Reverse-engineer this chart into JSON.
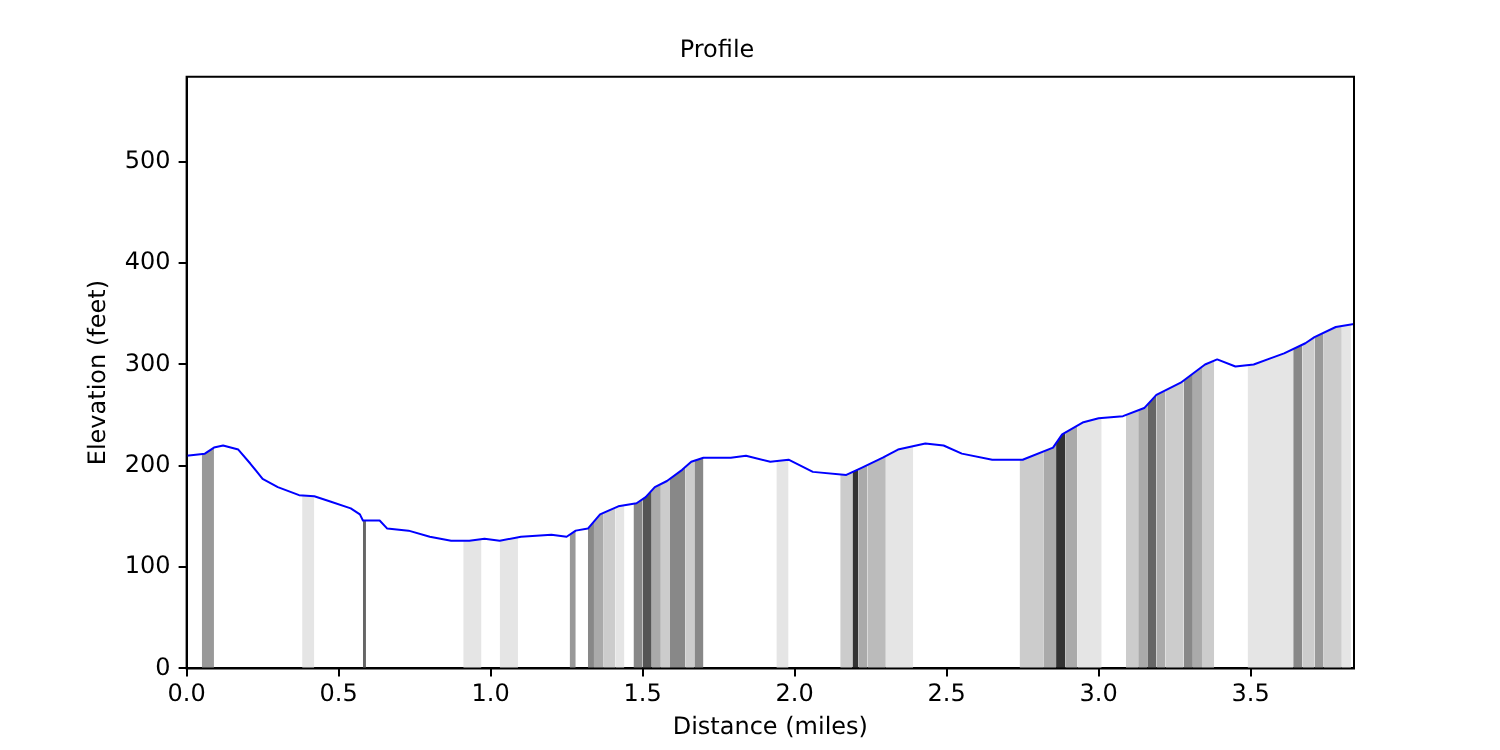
{
  "chart_data": {
    "type": "line",
    "title": "Profile",
    "xlabel": "Distance (miles)",
    "ylabel": "Elevation (feet)",
    "xlim": [
      0,
      3.84
    ],
    "ylim": [
      0,
      584
    ],
    "xticks": [
      {
        "value": 0,
        "label": "0.0"
      },
      {
        "value": 0.5,
        "label": "0.5"
      },
      {
        "value": 1,
        "label": "1.0"
      },
      {
        "value": 1.5,
        "label": "1.5"
      },
      {
        "value": 2,
        "label": "2.0"
      },
      {
        "value": 2.5,
        "label": "2.5"
      },
      {
        "value": 3,
        "label": "3.0"
      },
      {
        "value": 3.5,
        "label": "3.5"
      }
    ],
    "yticks": [
      0,
      100,
      200,
      300,
      400,
      500
    ],
    "grid": false,
    "legend": false,
    "marker": "none",
    "line_style": "solid",
    "series": [
      {
        "color": "#0000ff",
        "x": [
          0,
          0.06,
          0.09,
          0.12,
          0.17,
          0.21,
          0.25,
          0.3,
          0.37,
          0.42,
          0.47,
          0.54,
          0.57,
          0.58,
          0.635,
          0.66,
          0.73,
          0.8,
          0.87,
          0.93,
          0.98,
          1.03,
          1.1,
          1.2,
          1.25,
          1.28,
          1.32,
          1.36,
          1.42,
          1.48,
          1.51,
          1.54,
          1.58,
          1.63,
          1.66,
          1.7,
          1.79,
          1.84,
          1.92,
          1.98,
          2.06,
          2.17,
          2.22,
          2.29,
          2.34,
          2.43,
          2.49,
          2.55,
          2.65,
          2.75,
          2.85,
          2.88,
          2.95,
          3.0,
          3.08,
          3.15,
          3.19,
          3.27,
          3.35,
          3.39,
          3.45,
          3.51,
          3.61,
          3.68,
          3.71,
          3.78,
          3.84
        ],
        "values": [
          210,
          212,
          218,
          220,
          216,
          202,
          187,
          179,
          171,
          170,
          165,
          158,
          152,
          146,
          146,
          138,
          136,
          130,
          126,
          126,
          128,
          126,
          130,
          132,
          130,
          136,
          138,
          152,
          160,
          163,
          169,
          179,
          185,
          196,
          204,
          208,
          208,
          210,
          204,
          206,
          194,
          191,
          198,
          208,
          216,
          222,
          220,
          212,
          206,
          206,
          218,
          231,
          243,
          247,
          249,
          257,
          270,
          282,
          300,
          305,
          298,
          300,
          311,
          321,
          327,
          337,
          340
        ]
      },
      {
        "type": "area",
        "color": "#999999",
        "x": [
          0.05,
          0.06,
          0.09
        ],
        "values": [
          212,
          212,
          218
        ]
      },
      {
        "type": "area",
        "color": "#e5e5e5",
        "x": [
          0.38,
          0.42
        ],
        "values": [
          171,
          170
        ]
      },
      {
        "type": "area",
        "color": "#666666",
        "x": [
          0.58,
          0.59
        ],
        "values": [
          146,
          146
        ]
      },
      {
        "type": "area",
        "color": "#e5e5e5",
        "x": [
          0.91,
          0.93,
          0.97
        ],
        "values": [
          126,
          126,
          128
        ]
      },
      {
        "type": "area",
        "color": "#e5e5e5",
        "x": [
          1.03,
          1.09
        ],
        "values": [
          126,
          129
        ]
      },
      {
        "type": "area",
        "color": "#999999",
        "x": [
          1.26,
          1.28
        ],
        "values": [
          132,
          136
        ]
      },
      {
        "type": "area",
        "color": "#888888",
        "x": [
          1.32,
          1.34
        ],
        "values": [
          138,
          145
        ]
      },
      {
        "type": "area",
        "color": "#aaaaaa",
        "x": [
          1.34,
          1.36,
          1.37
        ],
        "values": [
          145,
          152,
          153
        ]
      },
      {
        "type": "area",
        "color": "#cccccc",
        "x": [
          1.37,
          1.41
        ],
        "values": [
          153,
          159
        ]
      },
      {
        "type": "area",
        "color": "#e5e5e5",
        "x": [
          1.41,
          1.42,
          1.44
        ],
        "values": [
          159,
          160,
          161
        ]
      },
      {
        "type": "area",
        "color": "#888888",
        "x": [
          1.47,
          1.48,
          1.5
        ],
        "values": [
          162,
          163,
          167
        ]
      },
      {
        "type": "area",
        "color": "#555555",
        "x": [
          1.5,
          1.51,
          1.53
        ],
        "values": [
          167,
          169,
          176
        ]
      },
      {
        "type": "area",
        "color": "#aaaaaa",
        "x": [
          1.53,
          1.54,
          1.56
        ],
        "values": [
          176,
          179,
          182
        ]
      },
      {
        "type": "area",
        "color": "#cccccc",
        "x": [
          1.56,
          1.58,
          1.59
        ],
        "values": [
          182,
          185,
          187
        ]
      },
      {
        "type": "area",
        "color": "#888888",
        "x": [
          1.59,
          1.63,
          1.64
        ],
        "values": [
          187,
          196,
          199
        ]
      },
      {
        "type": "area",
        "color": "#cccccc",
        "x": [
          1.64,
          1.66,
          1.67
        ],
        "values": [
          199,
          204,
          205
        ]
      },
      {
        "type": "area",
        "color": "#888888",
        "x": [
          1.67,
          1.7
        ],
        "values": [
          205,
          208
        ]
      },
      {
        "type": "area",
        "color": "#e5e5e5",
        "x": [
          1.94,
          1.98
        ],
        "values": [
          205,
          206
        ]
      },
      {
        "type": "area",
        "color": "#cccccc",
        "x": [
          2.15,
          2.17,
          2.19
        ],
        "values": [
          192,
          191,
          194
        ]
      },
      {
        "type": "area",
        "color": "#333333",
        "x": [
          2.19,
          2.21
        ],
        "values": [
          194,
          197
        ]
      },
      {
        "type": "area",
        "color": "#aaaaaa",
        "x": [
          2.21,
          2.22,
          2.24
        ],
        "values": [
          197,
          198,
          201
        ]
      },
      {
        "type": "area",
        "color": "#bbbbbb",
        "x": [
          2.24,
          2.29,
          2.3
        ],
        "values": [
          201,
          208,
          210
        ]
      },
      {
        "type": "area",
        "color": "#e5e5e5",
        "x": [
          2.3,
          2.34,
          2.39
        ],
        "values": [
          210,
          216,
          219
        ]
      },
      {
        "type": "area",
        "color": "#cccccc",
        "x": [
          2.74,
          2.75,
          2.82
        ],
        "values": [
          206,
          206,
          214
        ]
      },
      {
        "type": "area",
        "color": "#aaaaaa",
        "x": [
          2.82,
          2.85,
          2.86
        ],
        "values": [
          214,
          218,
          222
        ]
      },
      {
        "type": "area",
        "color": "#333333",
        "x": [
          2.86,
          2.88,
          2.89
        ],
        "values": [
          222,
          231,
          233
        ]
      },
      {
        "type": "area",
        "color": "#aaaaaa",
        "x": [
          2.89,
          2.93
        ],
        "values": [
          233,
          240
        ]
      },
      {
        "type": "area",
        "color": "#e5e5e5",
        "x": [
          2.93,
          2.95,
          3.0,
          3.01
        ],
        "values": [
          240,
          243,
          247,
          247
        ]
      },
      {
        "type": "area",
        "color": "#cccccc",
        "x": [
          3.09,
          3.13
        ],
        "values": [
          250,
          255
        ]
      },
      {
        "type": "area",
        "color": "#aaaaaa",
        "x": [
          3.13,
          3.15,
          3.16
        ],
        "values": [
          255,
          257,
          260
        ]
      },
      {
        "type": "area",
        "color": "#666666",
        "x": [
          3.16,
          3.19
        ],
        "values": [
          260,
          270
        ]
      },
      {
        "type": "area",
        "color": "#aaaaaa",
        "x": [
          3.19,
          3.22
        ],
        "values": [
          270,
          274
        ]
      },
      {
        "type": "area",
        "color": "#cccccc",
        "x": [
          3.22,
          3.27,
          3.28
        ],
        "values": [
          274,
          282,
          284
        ]
      },
      {
        "type": "area",
        "color": "#888888",
        "x": [
          3.28,
          3.31
        ],
        "values": [
          284,
          291
        ]
      },
      {
        "type": "area",
        "color": "#aaaaaa",
        "x": [
          3.31,
          3.34
        ],
        "values": [
          291,
          298
        ]
      },
      {
        "type": "area",
        "color": "#cccccc",
        "x": [
          3.34,
          3.35,
          3.38
        ],
        "values": [
          298,
          300,
          304
        ]
      },
      {
        "type": "area",
        "color": "#e5e5e5",
        "x": [
          3.49,
          3.51,
          3.61,
          3.64
        ],
        "values": [
          299,
          300,
          311,
          315
        ]
      },
      {
        "type": "area",
        "color": "#888888",
        "x": [
          3.64,
          3.67
        ],
        "values": [
          315,
          320
        ]
      },
      {
        "type": "area",
        "color": "#cccccc",
        "x": [
          3.67,
          3.68,
          3.71
        ],
        "values": [
          320,
          321,
          327
        ]
      },
      {
        "type": "area",
        "color": "#999999",
        "x": [
          3.71,
          3.74
        ],
        "values": [
          327,
          331
        ]
      },
      {
        "type": "area",
        "color": "#cccccc",
        "x": [
          3.74,
          3.78,
          3.8
        ],
        "values": [
          331,
          337,
          338
        ]
      },
      {
        "type": "area",
        "color": "#e5e5e5",
        "x": [
          3.8,
          3.83
        ],
        "values": [
          338,
          339
        ]
      }
    ]
  }
}
